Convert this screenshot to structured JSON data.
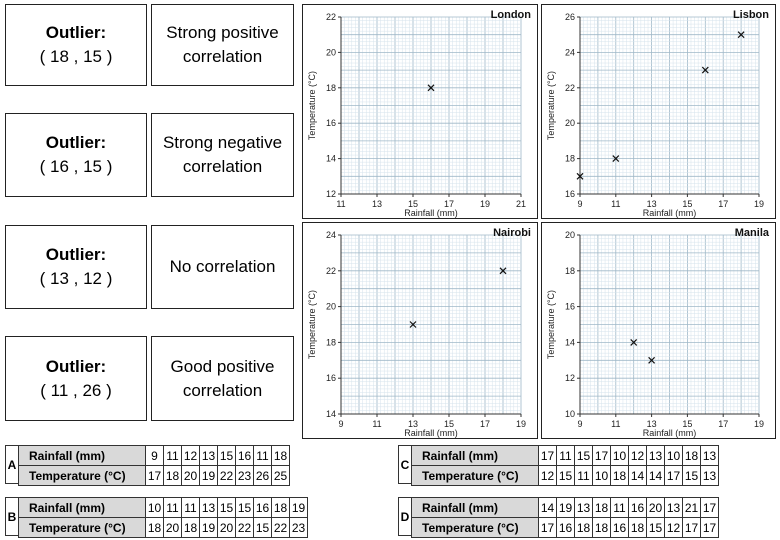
{
  "cards": [
    {
      "outlier_label": "Outlier:",
      "outlier_value": "( 18 , 15 )",
      "correlation": "Strong positive correlation"
    },
    {
      "outlier_label": "Outlier:",
      "outlier_value": "( 16 , 15 )",
      "correlation": "Strong negative correlation"
    },
    {
      "outlier_label": "Outlier:",
      "outlier_value": "( 13 , 12 )",
      "correlation": "No correlation"
    },
    {
      "outlier_label": "Outlier:",
      "outlier_value": "( 11 , 26 )",
      "correlation": "Good positive correlation"
    }
  ],
  "chart_data": [
    {
      "type": "scatter",
      "title": "London",
      "xlabel": "Rainfall (mm)",
      "ylabel": "Temperature (°C)",
      "xlim": [
        11,
        21
      ],
      "ylim": [
        12,
        22
      ],
      "xticks": [
        11,
        13,
        15,
        17,
        19,
        21
      ],
      "yticks": [
        12,
        14,
        16,
        18,
        20,
        22
      ],
      "points": [
        [
          16,
          18
        ]
      ]
    },
    {
      "type": "scatter",
      "title": "Lisbon",
      "xlabel": "Rainfall (mm)",
      "ylabel": "Temperature (°C)",
      "xlim": [
        9,
        19
      ],
      "ylim": [
        16,
        26
      ],
      "xticks": [
        9,
        11,
        13,
        15,
        17,
        19
      ],
      "yticks": [
        16,
        18,
        20,
        22,
        24,
        26
      ],
      "points": [
        [
          9,
          17
        ],
        [
          11,
          18
        ],
        [
          16,
          23
        ],
        [
          18,
          25
        ]
      ]
    },
    {
      "type": "scatter",
      "title": "Nairobi",
      "xlabel": "Rainfall (mm)",
      "ylabel": "Temperature (°C)",
      "xlim": [
        9,
        19
      ],
      "ylim": [
        14,
        24
      ],
      "xticks": [
        9,
        11,
        13,
        15,
        17,
        19
      ],
      "yticks": [
        14,
        16,
        18,
        20,
        22,
        24
      ],
      "points": [
        [
          13,
          19
        ],
        [
          18,
          22
        ]
      ]
    },
    {
      "type": "scatter",
      "title": "Manila",
      "xlabel": "Rainfall (mm)",
      "ylabel": "Temperature (°C)",
      "xlim": [
        9,
        19
      ],
      "ylim": [
        10,
        20
      ],
      "xticks": [
        9,
        11,
        13,
        15,
        17,
        19
      ],
      "yticks": [
        10,
        12,
        14,
        16,
        18,
        20
      ],
      "points": [
        [
          12,
          14
        ],
        [
          13,
          13
        ]
      ]
    }
  ],
  "tables": [
    {
      "letter": "A",
      "row1_label": "Rainfall (mm)",
      "row2_label": "Temperature (°C)",
      "rainfall": [
        "9",
        "11",
        "12",
        "13",
        "15",
        "16",
        "11",
        "18"
      ],
      "temperature": [
        "17",
        "18",
        "20",
        "19",
        "22",
        "23",
        "26",
        "25"
      ]
    },
    {
      "letter": "B",
      "row1_label": "Rainfall (mm)",
      "row2_label": "Temperature (°C)",
      "rainfall": [
        "10",
        "11",
        "11",
        "13",
        "15",
        "15",
        "16",
        "18",
        "19"
      ],
      "temperature": [
        "18",
        "20",
        "18",
        "19",
        "20",
        "22",
        "15",
        "22",
        "23"
      ]
    },
    {
      "letter": "C",
      "row1_label": "Rainfall (mm)",
      "row2_label": "Temperature (°C)",
      "rainfall": [
        "17",
        "11",
        "15",
        "17",
        "10",
        "12",
        "13",
        "10",
        "18",
        "13"
      ],
      "temperature": [
        "12",
        "15",
        "11",
        "10",
        "18",
        "14",
        "14",
        "17",
        "15",
        "13"
      ]
    },
    {
      "letter": "D",
      "row1_label": "Rainfall (mm)",
      "row2_label": "Temperature (°C)",
      "rainfall": [
        "14",
        "19",
        "13",
        "18",
        "11",
        "16",
        "20",
        "13",
        "21",
        "17"
      ],
      "temperature": [
        "17",
        "16",
        "18",
        "18",
        "16",
        "18",
        "15",
        "12",
        "17",
        "17"
      ]
    }
  ]
}
